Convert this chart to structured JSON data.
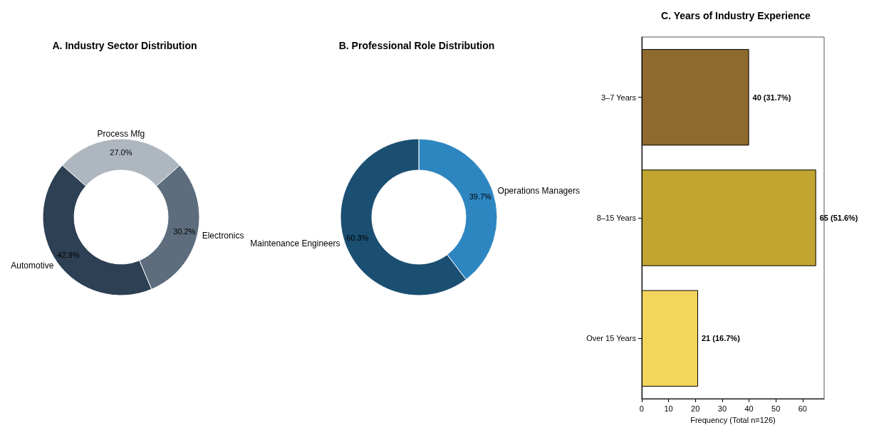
{
  "chart_data": [
    {
      "type": "donut",
      "title": "A. Industry Sector Distribution",
      "categories": [
        "Process Mfg",
        "Electronics",
        "Automotive"
      ],
      "values": [
        27.0,
        30.2,
        42.9
      ],
      "colors": [
        "#aeb6bf",
        "#5d6d7e",
        "#2e4053"
      ],
      "value_labels": [
        "27.0%",
        "30.2%",
        "42.9%"
      ]
    },
    {
      "type": "donut",
      "title": "B. Professional Role Distribution",
      "categories": [
        "Operations Managers",
        "Maintenance Engineers"
      ],
      "values": [
        39.7,
        60.3
      ],
      "colors": [
        "#2e86c1",
        "#1b4f72"
      ],
      "value_labels": [
        "39.7%",
        "60.3%"
      ]
    },
    {
      "type": "bar",
      "orientation": "horizontal",
      "title": "C. Years of Industry Experience",
      "xlabel": "Frequency (Total n=126)",
      "categories": [
        "3–7 Years",
        "8–15 Years",
        "Over 15 Years"
      ],
      "values": [
        40,
        65,
        21
      ],
      "colors": [
        "#8f6a2e",
        "#c2a531",
        "#f3d55c"
      ],
      "value_labels": [
        "40 (31.7%)",
        "65 (51.6%)",
        "21 (16.7%)"
      ],
      "xlim": [
        0,
        68
      ],
      "xticks": [
        0,
        10,
        20,
        30,
        40,
        50,
        60
      ]
    }
  ]
}
